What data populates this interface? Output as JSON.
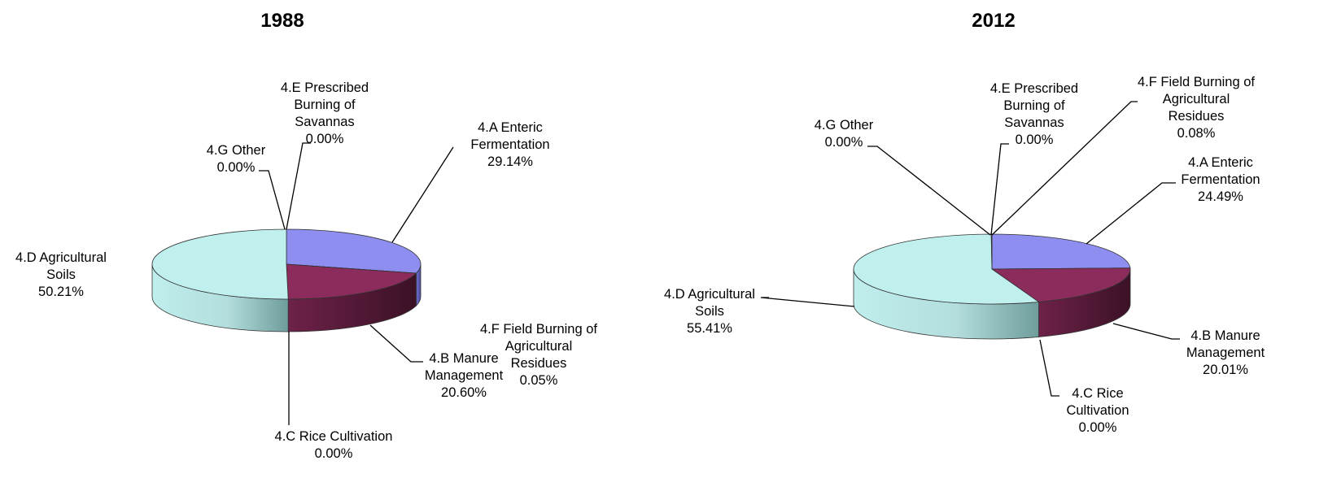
{
  "colors": {
    "enteric": "#8e8ef0",
    "manure": "#8c2c5c",
    "soils": "#bff0ee",
    "other": "#ffffff"
  },
  "chart_data": [
    {
      "type": "pie",
      "title": "1988",
      "three_d": true,
      "slices": [
        {
          "id": "enteric",
          "label": [
            "4.A Enteric",
            "Fermentation"
          ],
          "pct": "29.14%",
          "value": 29.14
        },
        {
          "id": "fieldburn",
          "label": [
            "4.F Field Burning of",
            "Agricultural",
            "Residues"
          ],
          "pct": "0.05%",
          "value": 0.05
        },
        {
          "id": "manure",
          "label": [
            "4.B Manure",
            "Management"
          ],
          "pct": "20.60%",
          "value": 20.6
        },
        {
          "id": "rice",
          "label": [
            "4.C Rice Cultivation"
          ],
          "pct": "0.00%",
          "value": 0.0
        },
        {
          "id": "soils",
          "label": [
            "4.D Agricultural",
            "Soils"
          ],
          "pct": "50.21%",
          "value": 50.21
        },
        {
          "id": "other",
          "label": [
            "4.G Other"
          ],
          "pct": "0.00%",
          "value": 0.0
        },
        {
          "id": "savannas",
          "label": [
            "4.E Prescribed",
            "Burning of",
            "Savannas"
          ],
          "pct": "0.00%",
          "value": 0.0
        }
      ]
    },
    {
      "type": "pie",
      "title": "2012",
      "three_d": true,
      "slices": [
        {
          "id": "enteric",
          "label": [
            "4.A Enteric",
            "Fermentation"
          ],
          "pct": "24.49%",
          "value": 24.49
        },
        {
          "id": "manure",
          "label": [
            "4.B Manure",
            "Management"
          ],
          "pct": "20.01%",
          "value": 20.01
        },
        {
          "id": "rice",
          "label": [
            "4.C Rice",
            "Cultivation"
          ],
          "pct": "0.00%",
          "value": 0.0
        },
        {
          "id": "soils",
          "label": [
            "4.D Agricultural",
            "Soils"
          ],
          "pct": "55.41%",
          "value": 55.41
        },
        {
          "id": "other",
          "label": [
            "4.G Other"
          ],
          "pct": "0.00%",
          "value": 0.0
        },
        {
          "id": "savannas",
          "label": [
            "4.E Prescribed",
            "Burning of",
            "Savannas"
          ],
          "pct": "0.00%",
          "value": 0.0
        },
        {
          "id": "fieldburn",
          "label": [
            "4.F Field Burning of",
            "Agricultural",
            "Residues"
          ],
          "pct": "0.08%",
          "value": 0.08
        }
      ]
    }
  ]
}
